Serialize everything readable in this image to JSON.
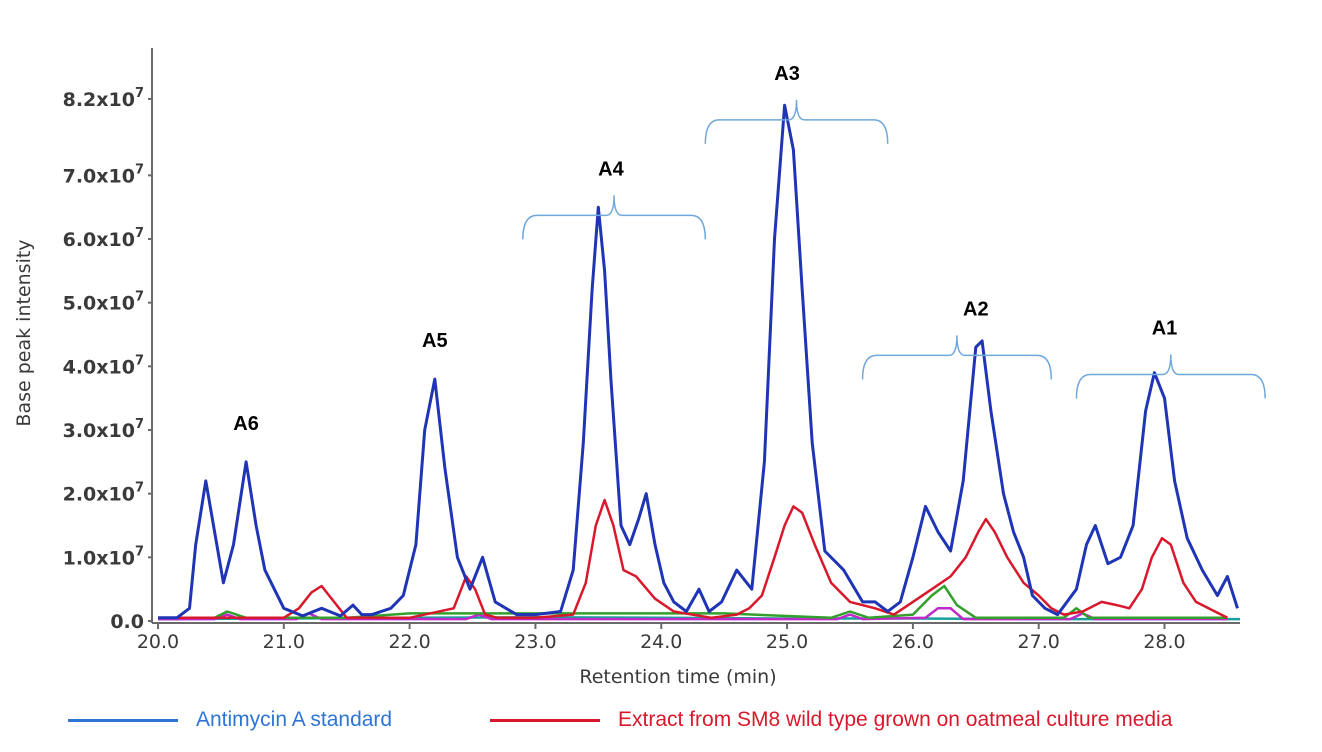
{
  "chart_data": {
    "type": "line",
    "xlabel": "Retention time (min)",
    "ylabel": "Base peak intensity",
    "xlim": [
      20.0,
      28.6
    ],
    "ylim": [
      0.0,
      9.0
    ],
    "x_ticks": [
      "20.0",
      "21.0",
      "22.0",
      "23.0",
      "24.0",
      "25.0",
      "26.0",
      "27.0",
      "28.0"
    ],
    "y_ticks": [
      {
        "value": 0.0,
        "mant": "0.0",
        "exp": ""
      },
      {
        "value": 1.0,
        "mant": "1.0x10",
        "exp": "7"
      },
      {
        "value": 2.0,
        "mant": "2.0x10",
        "exp": "7"
      },
      {
        "value": 3.0,
        "mant": "3.0x10",
        "exp": "7"
      },
      {
        "value": 4.0,
        "mant": "4.0x10",
        "exp": "7"
      },
      {
        "value": 5.0,
        "mant": "5.0x10",
        "exp": "7"
      },
      {
        "value": 6.0,
        "mant": "6.0x10",
        "exp": "7"
      },
      {
        "value": 7.0,
        "mant": "7.0x10",
        "exp": "7"
      },
      {
        "value": 8.2,
        "mant": "8.2x10",
        "exp": "7"
      }
    ],
    "peak_groups": [
      {
        "label": "A6",
        "x": 20.7,
        "y": 3.0
      },
      {
        "label": "A5",
        "x": 22.2,
        "y": 4.3
      },
      {
        "label": "A4",
        "x": 23.6,
        "y": 7.0,
        "bracket": [
          22.9,
          24.35
        ]
      },
      {
        "label": "A3",
        "x": 25.0,
        "y": 8.5,
        "bracket": [
          24.35,
          25.8
        ]
      },
      {
        "label": "A2",
        "x": 26.5,
        "y": 4.8,
        "bracket": [
          25.6,
          27.1
        ]
      },
      {
        "label": "A1",
        "x": 28.0,
        "y": 4.5,
        "bracket": [
          27.3,
          28.8
        ]
      }
    ],
    "series": [
      {
        "name": "Antimycin A standard",
        "color": "#1f35b5",
        "x": [
          20.0,
          20.15,
          20.25,
          20.3,
          20.38,
          20.45,
          20.52,
          20.6,
          20.7,
          20.78,
          20.85,
          21.0,
          21.15,
          21.3,
          21.45,
          21.55,
          21.62,
          21.7,
          21.85,
          21.95,
          22.05,
          22.12,
          22.2,
          22.28,
          22.38,
          22.48,
          22.58,
          22.68,
          22.85,
          23.0,
          23.2,
          23.3,
          23.38,
          23.45,
          23.5,
          23.55,
          23.6,
          23.68,
          23.75,
          23.82,
          23.88,
          23.95,
          24.02,
          24.1,
          24.2,
          24.3,
          24.38,
          24.48,
          24.6,
          24.72,
          24.82,
          24.9,
          24.98,
          25.05,
          25.12,
          25.2,
          25.3,
          25.45,
          25.6,
          25.7,
          25.8,
          25.9,
          26.0,
          26.1,
          26.2,
          26.3,
          26.4,
          26.5,
          26.55,
          26.62,
          26.72,
          26.8,
          26.88,
          26.95,
          27.05,
          27.15,
          27.3,
          27.38,
          27.45,
          27.55,
          27.65,
          27.75,
          27.85,
          27.92,
          28.0,
          28.08,
          28.18,
          28.3,
          28.42,
          28.5,
          28.58
        ],
        "y": [
          0.05,
          0.05,
          0.2,
          1.2,
          2.2,
          1.4,
          0.6,
          1.2,
          2.5,
          1.5,
          0.8,
          0.2,
          0.08,
          0.2,
          0.08,
          0.25,
          0.1,
          0.1,
          0.2,
          0.4,
          1.2,
          3.0,
          3.8,
          2.4,
          1.0,
          0.5,
          1.0,
          0.3,
          0.1,
          0.1,
          0.15,
          0.8,
          2.8,
          5.2,
          6.5,
          5.5,
          3.8,
          1.5,
          1.2,
          1.6,
          2.0,
          1.2,
          0.6,
          0.3,
          0.15,
          0.5,
          0.15,
          0.3,
          0.8,
          0.5,
          2.5,
          6.0,
          8.1,
          7.4,
          5.2,
          2.8,
          1.1,
          0.8,
          0.3,
          0.3,
          0.15,
          0.3,
          1.0,
          1.8,
          1.4,
          1.1,
          2.2,
          4.3,
          4.4,
          3.3,
          2.0,
          1.4,
          1.0,
          0.4,
          0.2,
          0.1,
          0.5,
          1.2,
          1.5,
          0.9,
          1.0,
          1.5,
          3.3,
          3.9,
          3.5,
          2.2,
          1.3,
          0.8,
          0.4,
          0.7,
          0.2
        ]
      },
      {
        "name": "Extract from SM8 wild type grown on oatmeal culture media",
        "color": "#d9182b",
        "x": [
          20.0,
          20.5,
          21.0,
          21.12,
          21.22,
          21.3,
          21.4,
          21.5,
          22.0,
          22.35,
          22.45,
          22.52,
          22.6,
          22.7,
          23.0,
          23.3,
          23.4,
          23.48,
          23.55,
          23.62,
          23.7,
          23.8,
          23.95,
          24.1,
          24.4,
          24.6,
          24.7,
          24.8,
          24.9,
          24.98,
          25.05,
          25.12,
          25.22,
          25.35,
          25.5,
          25.7,
          25.85,
          26.0,
          26.15,
          26.3,
          26.42,
          26.52,
          26.58,
          26.65,
          26.75,
          26.88,
          27.0,
          27.1,
          27.2,
          27.35,
          27.5,
          27.62,
          27.72,
          27.82,
          27.9,
          27.98,
          28.05,
          28.15,
          28.25,
          28.35,
          28.5
        ],
        "y": [
          0.05,
          0.05,
          0.05,
          0.2,
          0.45,
          0.55,
          0.3,
          0.05,
          0.05,
          0.2,
          0.7,
          0.5,
          0.1,
          0.05,
          0.05,
          0.1,
          0.6,
          1.5,
          1.9,
          1.5,
          0.8,
          0.7,
          0.35,
          0.15,
          0.05,
          0.1,
          0.2,
          0.4,
          1.0,
          1.5,
          1.8,
          1.7,
          1.2,
          0.6,
          0.3,
          0.2,
          0.1,
          0.3,
          0.5,
          0.7,
          1.0,
          1.4,
          1.6,
          1.4,
          1.0,
          0.6,
          0.4,
          0.2,
          0.1,
          0.15,
          0.3,
          0.25,
          0.2,
          0.5,
          1.0,
          1.3,
          1.2,
          0.6,
          0.3,
          0.2,
          0.05
        ]
      },
      {
        "name": "",
        "color": "#33a02c",
        "x": [
          20.0,
          20.45,
          20.55,
          20.7,
          21.5,
          22.0,
          22.5,
          23.5,
          24.5,
          25.35,
          25.5,
          25.65,
          26.0,
          26.15,
          26.25,
          26.35,
          26.5,
          27.2,
          27.3,
          27.4,
          27.6,
          28.5
        ],
        "y": [
          0.05,
          0.05,
          0.15,
          0.05,
          0.05,
          0.12,
          0.12,
          0.12,
          0.12,
          0.05,
          0.15,
          0.05,
          0.1,
          0.4,
          0.55,
          0.25,
          0.05,
          0.05,
          0.2,
          0.05,
          0.05,
          0.05
        ]
      },
      {
        "name": "",
        "color": "#c02ac8",
        "x": [
          20.0,
          20.45,
          20.55,
          20.65,
          21.1,
          21.2,
          21.3,
          22.45,
          22.55,
          22.65,
          25.4,
          25.5,
          25.6,
          26.1,
          26.2,
          26.3,
          26.4,
          27.25,
          27.35,
          27.45,
          28.5
        ],
        "y": [
          0.03,
          0.03,
          0.1,
          0.03,
          0.03,
          0.12,
          0.03,
          0.03,
          0.1,
          0.03,
          0.03,
          0.1,
          0.03,
          0.05,
          0.2,
          0.2,
          0.03,
          0.03,
          0.12,
          0.03,
          0.03
        ]
      },
      {
        "name": "",
        "color": "#1b9e9e",
        "x": [
          20.0,
          21.0,
          22.0,
          23.0,
          24.0,
          25.0,
          26.0,
          27.0,
          28.0,
          28.6
        ],
        "y": [
          0.03,
          0.04,
          0.05,
          0.06,
          0.05,
          0.04,
          0.04,
          0.03,
          0.03,
          0.03
        ]
      }
    ]
  }
}
